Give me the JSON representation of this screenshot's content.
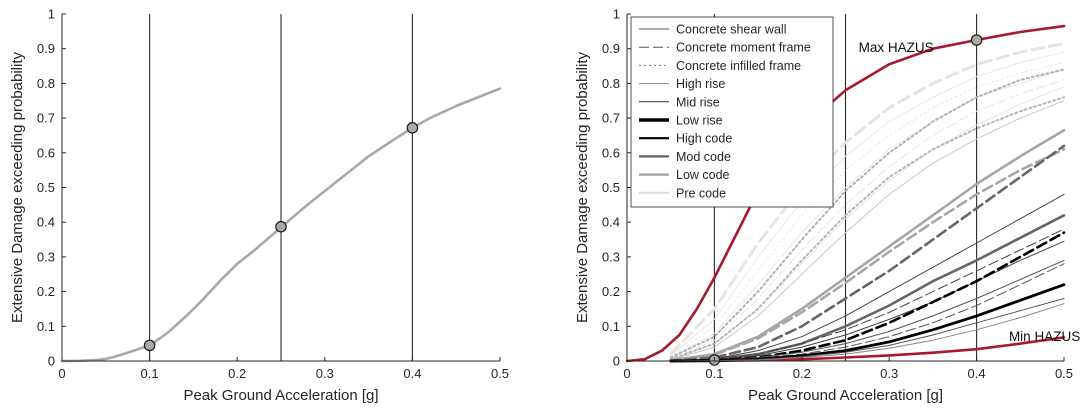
{
  "chart_data": [
    {
      "type": "line",
      "xlabel": "Peak Ground Acceleration [g]",
      "ylabel": "Extensive Damage exceeding probability",
      "xlim": [
        0,
        0.5
      ],
      "ylim": [
        0,
        1
      ],
      "xticks": [
        "0",
        "0.1",
        "0.2",
        "0.3",
        "0.4",
        "0.5"
      ],
      "yticks": [
        "0",
        "0.1",
        "0.2",
        "0.3",
        "0.4",
        "0.5",
        "0.6",
        "0.7",
        "0.8",
        "0.9",
        "1"
      ],
      "vlines": [
        0.1,
        0.25,
        0.4
      ],
      "series": [
        {
          "color": "#a8a8a8",
          "x": [
            0,
            0.02,
            0.04,
            0.05,
            0.06,
            0.07,
            0.08,
            0.09,
            0.1,
            0.12,
            0.14,
            0.16,
            0.18,
            0.2,
            0.22,
            0.25,
            0.28,
            0.3,
            0.32,
            0.35,
            0.38,
            0.4,
            0.42,
            0.45,
            0.48,
            0.5
          ],
          "y": [
            0,
            0.0005,
            0.003,
            0.006,
            0.012,
            0.02,
            0.028,
            0.037,
            0.045,
            0.08,
            0.125,
            0.175,
            0.23,
            0.28,
            0.32,
            0.385,
            0.45,
            0.49,
            0.53,
            0.59,
            0.64,
            0.672,
            0.7,
            0.735,
            0.765,
            0.785
          ]
        }
      ],
      "markers": [
        {
          "x": 0.1,
          "y": 0.045
        },
        {
          "x": 0.25,
          "y": 0.387
        },
        {
          "x": 0.4,
          "y": 0.672
        }
      ]
    },
    {
      "type": "line",
      "xlabel": "Peak Ground Acceleration [g]",
      "ylabel": "Extensive Damage exceeding probability",
      "xlim": [
        0,
        0.5
      ],
      "ylim": [
        0,
        1
      ],
      "xticks": [
        "0",
        "0.1",
        "0.2",
        "0.3",
        "0.4",
        "0.5"
      ],
      "yticks": [
        "0",
        "0.1",
        "0.2",
        "0.3",
        "0.4",
        "0.5",
        "0.6",
        "0.7",
        "0.8",
        "0.9",
        "1"
      ],
      "vlines": [
        0.1,
        0.25,
        0.4
      ],
      "legend_position": "top-left",
      "legend": [
        {
          "label": "Concrete shear wall",
          "color": "#555555",
          "width": 1,
          "dash": ""
        },
        {
          "label": "Concrete moment frame",
          "color": "#555555",
          "width": 1,
          "dash": "10,4"
        },
        {
          "label": "Concrete infilled frame",
          "color": "#777777",
          "width": 1,
          "dash": "2,3"
        },
        {
          "label": "High rise",
          "color": "#8a8a8a",
          "width": 1,
          "dash": ""
        },
        {
          "label": "Mid rise",
          "color": "#333333",
          "width": 1,
          "dash": ""
        },
        {
          "label": "Low rise",
          "color": "#000000",
          "width": 3.5,
          "dash": ""
        },
        {
          "label": "High code",
          "color": "#000000",
          "width": 2.2,
          "dash": ""
        },
        {
          "label": "Mod code",
          "color": "#606060",
          "width": 2.2,
          "dash": ""
        },
        {
          "label": "Low code",
          "color": "#a0a0a0",
          "width": 2.2,
          "dash": ""
        },
        {
          "label": "Pre code",
          "color": "#dcdcdc",
          "width": 2.2,
          "dash": ""
        }
      ],
      "annotations": [
        {
          "text": "Max HAZUS",
          "x": 0.265,
          "y": 0.905
        },
        {
          "text": "Min HAZUS",
          "x": 0.437,
          "y": 0.072
        }
      ],
      "series": [
        {
          "id": "max_hazus",
          "color": "#a8192e",
          "width": 2.6,
          "dash": "",
          "x": [
            0,
            0.02,
            0.04,
            0.06,
            0.08,
            0.1,
            0.12,
            0.14,
            0.16,
            0.2,
            0.25,
            0.3,
            0.35,
            0.4,
            0.45,
            0.5
          ],
          "y": [
            0,
            0.005,
            0.03,
            0.075,
            0.15,
            0.24,
            0.34,
            0.44,
            0.53,
            0.67,
            0.78,
            0.855,
            0.9,
            0.925,
            0.948,
            0.965
          ]
        },
        {
          "id": "min_hazus",
          "color": "#a8192e",
          "width": 2.6,
          "dash": "",
          "x": [
            0.05,
            0.1,
            0.15,
            0.2,
            0.25,
            0.3,
            0.35,
            0.4,
            0.45,
            0.5
          ],
          "y": [
            0,
            0.0005,
            0.002,
            0.005,
            0.01,
            0.016,
            0.024,
            0.034,
            0.05,
            0.068
          ]
        },
        {
          "color": "#e4e4e4",
          "width": 3,
          "dash": "12,6",
          "x": [
            0.05,
            0.1,
            0.15,
            0.2,
            0.25,
            0.3,
            0.35,
            0.4,
            0.45,
            0.5
          ],
          "y": [
            0.02,
            0.15,
            0.34,
            0.5,
            0.63,
            0.73,
            0.8,
            0.855,
            0.89,
            0.915
          ]
        },
        {
          "color": "#e8e8e8",
          "width": 1,
          "dash": "",
          "x": [
            0.05,
            0.1,
            0.15,
            0.2,
            0.25,
            0.3,
            0.35,
            0.4,
            0.45,
            0.5
          ],
          "y": [
            0.015,
            0.12,
            0.3,
            0.46,
            0.59,
            0.69,
            0.76,
            0.82,
            0.86,
            0.89
          ]
        },
        {
          "color": "#e8e8e8",
          "width": 1,
          "dash": "2,3",
          "x": [
            0.05,
            0.1,
            0.15,
            0.2,
            0.25,
            0.3,
            0.35,
            0.4,
            0.45,
            0.5
          ],
          "y": [
            0.01,
            0.1,
            0.26,
            0.42,
            0.55,
            0.65,
            0.73,
            0.79,
            0.83,
            0.86
          ]
        },
        {
          "color": "#e6e6e6",
          "width": 1,
          "dash": "",
          "x": [
            0.05,
            0.1,
            0.15,
            0.2,
            0.25,
            0.3,
            0.35,
            0.4,
            0.45,
            0.5
          ],
          "y": [
            0.008,
            0.08,
            0.22,
            0.37,
            0.5,
            0.61,
            0.69,
            0.76,
            0.8,
            0.84
          ]
        },
        {
          "color": "#e6e6e6",
          "width": 1,
          "dash": "10,4",
          "x": [
            0.05,
            0.1,
            0.15,
            0.2,
            0.25,
            0.3,
            0.35,
            0.4,
            0.45,
            0.5
          ],
          "y": [
            0.005,
            0.06,
            0.18,
            0.32,
            0.45,
            0.56,
            0.65,
            0.72,
            0.77,
            0.81
          ]
        },
        {
          "color": "#e4e4e4",
          "width": 1,
          "dash": "",
          "x": [
            0.05,
            0.1,
            0.15,
            0.2,
            0.25,
            0.3,
            0.35,
            0.4,
            0.45,
            0.5
          ],
          "y": [
            0.004,
            0.05,
            0.15,
            0.28,
            0.41,
            0.52,
            0.61,
            0.68,
            0.74,
            0.79
          ]
        },
        {
          "color": "#b0b0b0",
          "width": 2,
          "dash": "2,3",
          "x": [
            0.05,
            0.1,
            0.15,
            0.2,
            0.25,
            0.3,
            0.35,
            0.4,
            0.45,
            0.5
          ],
          "y": [
            0.01,
            0.07,
            0.2,
            0.35,
            0.49,
            0.6,
            0.69,
            0.76,
            0.81,
            0.84
          ]
        },
        {
          "color": "#b4b4b4",
          "width": 2,
          "dash": "2,3",
          "x": [
            0.05,
            0.1,
            0.15,
            0.2,
            0.25,
            0.3,
            0.35,
            0.4,
            0.45,
            0.5
          ],
          "y": [
            0.005,
            0.05,
            0.15,
            0.29,
            0.42,
            0.53,
            0.61,
            0.67,
            0.72,
            0.76
          ]
        },
        {
          "color": "#c8c8c8",
          "width": 1,
          "dash": "",
          "x": [
            0.05,
            0.1,
            0.15,
            0.2,
            0.25,
            0.3,
            0.35,
            0.4,
            0.45,
            0.5
          ],
          "y": [
            0.003,
            0.04,
            0.13,
            0.25,
            0.37,
            0.48,
            0.57,
            0.64,
            0.7,
            0.75
          ]
        },
        {
          "color": "#a6a6a6",
          "width": 2.6,
          "dash": "",
          "x": [
            0.05,
            0.1,
            0.15,
            0.2,
            0.25,
            0.3,
            0.35,
            0.4,
            0.45,
            0.5
          ],
          "y": [
            0.002,
            0.02,
            0.07,
            0.15,
            0.24,
            0.33,
            0.42,
            0.51,
            0.59,
            0.665
          ]
        },
        {
          "color": "#a6a6a6",
          "width": 2.6,
          "dash": "10,5",
          "x": [
            0.05,
            0.1,
            0.15,
            0.2,
            0.25,
            0.3,
            0.35,
            0.4,
            0.45,
            0.5
          ],
          "y": [
            0.002,
            0.018,
            0.065,
            0.14,
            0.225,
            0.315,
            0.4,
            0.48,
            0.55,
            0.61
          ]
        },
        {
          "color": "#666666",
          "width": 2.6,
          "dash": "10,5",
          "x": [
            0.05,
            0.1,
            0.15,
            0.2,
            0.25,
            0.3,
            0.35,
            0.4,
            0.45,
            0.5
          ],
          "y": [
            0.001,
            0.01,
            0.04,
            0.1,
            0.18,
            0.26,
            0.35,
            0.44,
            0.53,
            0.62
          ]
        },
        {
          "color": "#666666",
          "width": 2.6,
          "dash": "",
          "x": [
            0.05,
            0.1,
            0.15,
            0.2,
            0.25,
            0.3,
            0.35,
            0.4,
            0.45,
            0.5
          ],
          "y": [
            0,
            0.005,
            0.02,
            0.05,
            0.1,
            0.16,
            0.23,
            0.29,
            0.355,
            0.42
          ]
        },
        {
          "color": "#444444",
          "width": 1,
          "dash": "",
          "x": [
            0.05,
            0.1,
            0.15,
            0.2,
            0.25,
            0.3,
            0.35,
            0.4,
            0.45,
            0.5
          ],
          "y": [
            0,
            0.006,
            0.03,
            0.07,
            0.13,
            0.2,
            0.27,
            0.34,
            0.41,
            0.48
          ]
        },
        {
          "color": "#444444",
          "width": 1,
          "dash": "10,4",
          "x": [
            0.05,
            0.1,
            0.15,
            0.2,
            0.25,
            0.3,
            0.35,
            0.4,
            0.45,
            0.5
          ],
          "y": [
            0,
            0.004,
            0.02,
            0.05,
            0.09,
            0.14,
            0.2,
            0.26,
            0.32,
            0.38
          ]
        },
        {
          "color": "#444444",
          "width": 1,
          "dash": "",
          "x": [
            0.05,
            0.1,
            0.15,
            0.2,
            0.25,
            0.3,
            0.35,
            0.4,
            0.45,
            0.5
          ],
          "y": [
            0,
            0.003,
            0.015,
            0.04,
            0.075,
            0.12,
            0.17,
            0.23,
            0.29,
            0.345
          ]
        },
        {
          "color": "#000000",
          "width": 2.6,
          "dash": "10,5",
          "x": [
            0.05,
            0.1,
            0.15,
            0.2,
            0.25,
            0.3,
            0.35,
            0.4,
            0.45,
            0.5
          ],
          "y": [
            0,
            0.002,
            0.01,
            0.03,
            0.06,
            0.11,
            0.17,
            0.23,
            0.3,
            0.37
          ]
        },
        {
          "color": "#555555",
          "width": 1,
          "dash": "",
          "x": [
            0.05,
            0.1,
            0.15,
            0.2,
            0.25,
            0.3,
            0.35,
            0.4,
            0.45,
            0.5
          ],
          "y": [
            0,
            0.002,
            0.01,
            0.025,
            0.05,
            0.085,
            0.13,
            0.18,
            0.235,
            0.29
          ]
        },
        {
          "color": "#555555",
          "width": 1,
          "dash": "10,4",
          "x": [
            0.05,
            0.1,
            0.15,
            0.2,
            0.25,
            0.3,
            0.35,
            0.4,
            0.45,
            0.5
          ],
          "y": [
            0,
            0.002,
            0.008,
            0.02,
            0.04,
            0.07,
            0.11,
            0.16,
            0.22,
            0.28
          ]
        },
        {
          "color": "#000000",
          "width": 2.8,
          "dash": "",
          "x": [
            0.05,
            0.1,
            0.15,
            0.2,
            0.25,
            0.3,
            0.35,
            0.4,
            0.45,
            0.5
          ],
          "y": [
            0,
            0.001,
            0.005,
            0.015,
            0.03,
            0.055,
            0.09,
            0.13,
            0.175,
            0.22
          ]
        },
        {
          "color": "#555555",
          "width": 1,
          "dash": "",
          "x": [
            0.05,
            0.1,
            0.15,
            0.2,
            0.25,
            0.3,
            0.35,
            0.4,
            0.45,
            0.5
          ],
          "y": [
            0,
            0.001,
            0.004,
            0.012,
            0.025,
            0.045,
            0.075,
            0.11,
            0.145,
            0.18
          ]
        },
        {
          "color": "#888888",
          "width": 1,
          "dash": "",
          "x": [
            0.05,
            0.1,
            0.15,
            0.2,
            0.25,
            0.3,
            0.35,
            0.4,
            0.45,
            0.5
          ],
          "y": [
            0,
            0.0008,
            0.003,
            0.01,
            0.02,
            0.037,
            0.06,
            0.09,
            0.125,
            0.165
          ]
        }
      ],
      "markers": [
        {
          "x": 0.1,
          "y": 0.003
        },
        {
          "x": 0.4,
          "y": 0.925
        }
      ]
    }
  ]
}
